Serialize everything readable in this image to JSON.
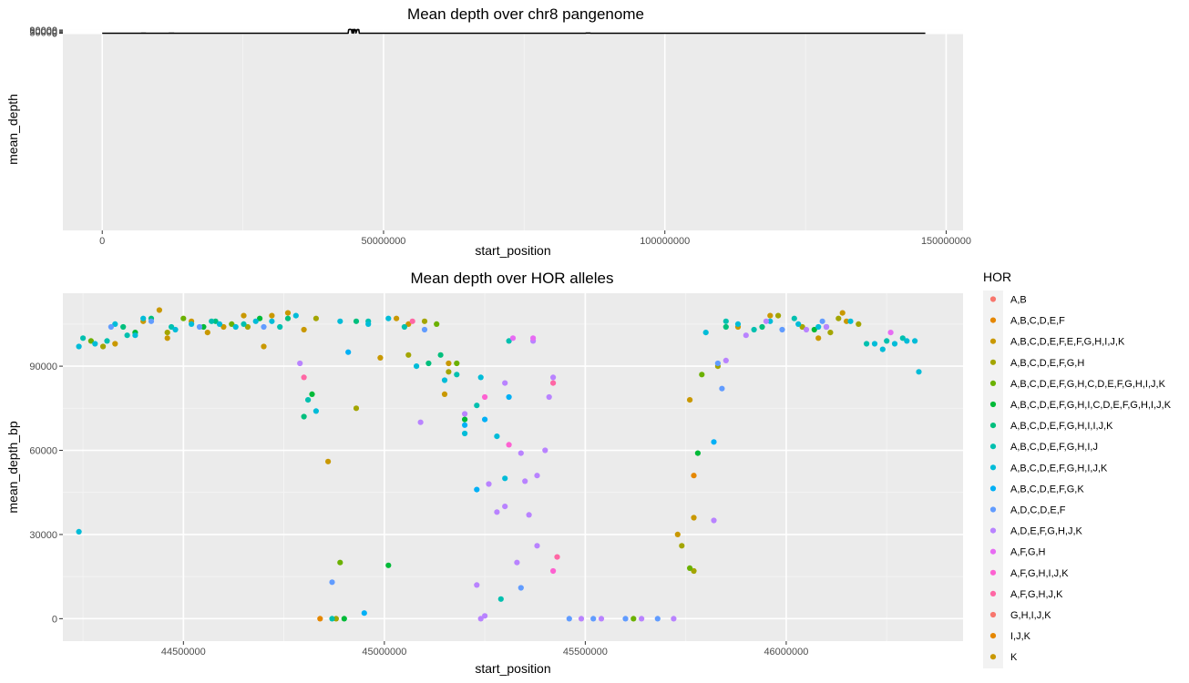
{
  "chart_data": [
    {
      "type": "line",
      "title": "Mean depth over chr8 pangenome",
      "xlabel": "start_position",
      "ylabel": "mean_depth",
      "xlim": [
        -7000000,
        153000000
      ],
      "ylim": [
        -5500000,
        115000
      ],
      "x_ticks": [
        0,
        50000000,
        100000000,
        150000000
      ],
      "x_tick_labels": [
        "0",
        "50000000",
        "100000000",
        "150000000"
      ],
      "y_ticks": [
        0,
        30000,
        60000,
        90000
      ],
      "y_tick_labels": [
        "0",
        "30000",
        "60000",
        "90000"
      ],
      "grid": true,
      "color": "#000000",
      "x": [
        0,
        6900000,
        7000000,
        7700000,
        7800000,
        11800000,
        11900000,
        12700000,
        12800000,
        43700000,
        43800000,
        44000000,
        44100000,
        44300000,
        44400000,
        44500000,
        44600000,
        44700000,
        44800000,
        45000000,
        45100000,
        45300000,
        45400000,
        45600000,
        45700000,
        57500000,
        57600000,
        57700000,
        85900000,
        86000000,
        86700000,
        86800000,
        144700000,
        144900000,
        146300000
      ],
      "y": [
        0,
        0,
        2500,
        2500,
        0,
        0,
        2500,
        2500,
        0,
        0,
        100000,
        110000,
        107000,
        100000,
        5000,
        105000,
        98000,
        4000,
        108000,
        100000,
        5000,
        102000,
        104000,
        100000,
        0,
        0,
        1000,
        0,
        0,
        5000,
        5000,
        0,
        0,
        1000,
        0
      ]
    },
    {
      "type": "scatter",
      "title": "Mean depth over HOR alleles",
      "xlabel": "start_position",
      "ylabel": "mean_depth_bp",
      "xlim": [
        44200000,
        46440000
      ],
      "ylim": [
        -8000,
        116000
      ],
      "x_ticks": [
        44500000,
        45000000,
        45500000,
        46000000
      ],
      "x_tick_labels": [
        "44500000",
        "45000000",
        "45500000",
        "46000000"
      ],
      "y_ticks": [
        0,
        30000,
        60000,
        90000
      ],
      "y_tick_labels": [
        "0",
        "30000",
        "60000",
        "90000"
      ],
      "grid": true,
      "legend": {
        "title": "HOR",
        "position": "right",
        "entries": [
          {
            "label": "A,B",
            "color": "#F8766D"
          },
          {
            "label": "A,B,C,D,E,F",
            "color": "#E58700"
          },
          {
            "label": "A,B,C,D,E,F,E,F,G,H,I,J,K",
            "color": "#C99800"
          },
          {
            "label": "A,B,C,D,E,F,G,H",
            "color": "#A3A500"
          },
          {
            "label": "A,B,C,D,E,F,G,H,C,D,E,F,G,H,I,J,K",
            "color": "#6BB100"
          },
          {
            "label": "A,B,C,D,E,F,G,H,I,C,D,E,F,G,H,I,J,K",
            "color": "#00BA38"
          },
          {
            "label": "A,B,C,D,E,F,G,H,I,I,J,K",
            "color": "#00BF7D"
          },
          {
            "label": "A,B,C,D,E,F,G,H,I,J",
            "color": "#00C0AF"
          },
          {
            "label": "A,B,C,D,E,F,G,H,I,J,K",
            "color": "#00BCD8"
          },
          {
            "label": "A,B,C,D,E,F,G,K",
            "color": "#00B0F6"
          },
          {
            "label": "A,D,C,D,E,F",
            "color": "#619CFF"
          },
          {
            "label": "A,D,E,F,G,H,J,K",
            "color": "#B983FF"
          },
          {
            "label": "A,F,G,H",
            "color": "#E76BF3"
          },
          {
            "label": "A,F,G,H,I,J,K",
            "color": "#FD61D1"
          },
          {
            "label": "A,F,G,H,J,K",
            "color": "#FF67A4"
          },
          {
            "label": "G,H,I,J,K",
            "color": "#F8766D"
          },
          {
            "label": "I,J,K",
            "color": "#E58700"
          },
          {
            "label": "K",
            "color": "#C99800"
          }
        ]
      },
      "series": [
        {
          "name": "A,B,C,D,E,F,E,F,G,H,I,J,K",
          "x": [
            44330000,
            44400000,
            44440000,
            44460000,
            44520000,
            44560000,
            44600000,
            44650000,
            44700000,
            44720000,
            44760000,
            44800000,
            44860000,
            44990000,
            45030000,
            45060000,
            45150000,
            45160000,
            45730000,
            45760000,
            45770000,
            45880000,
            45960000,
            46080000,
            46140000,
            46150000
          ],
          "y": [
            98000,
            106000,
            110000,
            100000,
            106000,
            102000,
            104000,
            108000,
            97000,
            108000,
            109000,
            103000,
            56000,
            93000,
            107000,
            105000,
            80000,
            91000,
            30000,
            78000,
            36000,
            104000,
            108000,
            100000,
            109000,
            106000
          ]
        },
        {
          "name": "A,B,C,D,E,F,G,H",
          "x": [
            44300000,
            44460000,
            44660000,
            44830000,
            44880000,
            44930000,
            45060000,
            45100000,
            45160000,
            45740000,
            45770000,
            45830000,
            45980000,
            46040000,
            46110000,
            46130000,
            46180000
          ],
          "y": [
            97000,
            102000,
            104000,
            107000,
            0,
            75000,
            94000,
            106000,
            88000,
            26000,
            17000,
            90000,
            108000,
            104000,
            102000,
            107000,
            105000
          ]
        },
        {
          "name": "A,B,C,D,E,F,G,H,C,D,E,F,G,H,I,J,K",
          "x": [
            44270000,
            44500000,
            44620000,
            44890000,
            45130000,
            45180000,
            45620000,
            45760000,
            45790000
          ],
          "y": [
            99000,
            107000,
            105000,
            20000,
            105000,
            91000,
            0,
            18000,
            87000
          ]
        },
        {
          "name": "A,B,C,D,E,F,G,H,I,C,D,E,F,G,H,I,J,K",
          "x": [
            44380000,
            44550000,
            44690000,
            44820000,
            44900000,
            45010000,
            45200000,
            45780000,
            46070000
          ],
          "y": [
            102000,
            104000,
            107000,
            80000,
            0,
            19000,
            71000,
            59000,
            103000
          ]
        },
        {
          "name": "A,B,C,D,E,F,G,H,I,I,J,K",
          "x": [
            44350000,
            44420000,
            44580000,
            44760000,
            44800000,
            44930000,
            45110000,
            45140000,
            45850000,
            45940000
          ],
          "y": [
            104000,
            107000,
            106000,
            107000,
            72000,
            106000,
            91000,
            94000,
            104000,
            104000
          ]
        },
        {
          "name": "A,B,C,D,E,F,G,H,I,J",
          "x": [
            44250000,
            44310000,
            44360000,
            44470000,
            44570000,
            44650000,
            44740000,
            44810000,
            44870000,
            44960000,
            45050000,
            45180000,
            45230000,
            45290000,
            45310000,
            45850000,
            45920000,
            46020000,
            46100000,
            46200000,
            46250000,
            46290000
          ],
          "y": [
            100000,
            99000,
            101000,
            104000,
            106000,
            105000,
            104000,
            78000,
            0,
            106000,
            104000,
            87000,
            76000,
            7000,
            99000,
            106000,
            103000,
            107000,
            104000,
            98000,
            99000,
            100000
          ]
        },
        {
          "name": "A,B,C,D,E,F,G,H,I,J,K",
          "x": [
            44240000,
            44240000,
            44280000,
            44330000,
            44380000,
            44400000,
            44480000,
            44520000,
            44590000,
            44630000,
            44680000,
            44720000,
            44780000,
            44830000,
            44890000,
            44960000,
            45010000,
            45080000,
            45150000,
            45200000,
            45240000,
            45280000,
            45300000,
            45800000,
            45880000,
            45960000,
            46030000,
            46080000,
            46160000,
            46220000,
            46240000,
            46270000,
            46300000,
            46320000,
            46330000
          ],
          "y": [
            97000,
            31000,
            98000,
            105000,
            101000,
            107000,
            103000,
            105000,
            105000,
            104000,
            106000,
            106000,
            108000,
            74000,
            106000,
            105000,
            107000,
            90000,
            85000,
            66000,
            86000,
            65000,
            50000,
            102000,
            105000,
            106000,
            105000,
            104000,
            106000,
            98000,
            96000,
            98000,
            99000,
            99000,
            88000
          ]
        },
        {
          "name": "A,B,C,D,E,F,G,K",
          "x": [
            44910000,
            44950000,
            45200000,
            45230000,
            45250000,
            45310000,
            45820000
          ],
          "y": [
            95000,
            2000,
            69000,
            46000,
            71000,
            79000,
            63000
          ]
        },
        {
          "name": "A,D,C,D,E,F",
          "x": [
            44320000,
            44420000,
            44540000,
            44700000,
            44870000,
            45100000,
            45340000,
            45460000,
            45520000,
            45600000,
            45680000,
            45830000,
            45840000,
            45990000,
            46090000
          ],
          "y": [
            104000,
            106000,
            104000,
            104000,
            13000,
            103000,
            11000,
            0,
            0,
            0,
            0,
            91000,
            82000,
            103000,
            106000
          ]
        },
        {
          "name": "A,D,E,F,G,H,J,K",
          "x": [
            44790000,
            45090000,
            45200000,
            45230000,
            45250000,
            45260000,
            45280000,
            45300000,
            45330000,
            45360000,
            45380000,
            45400000,
            45410000,
            45420000,
            45370000,
            45340000,
            45240000,
            45300000,
            45350000,
            45380000,
            45490000,
            45540000,
            45640000,
            45720000,
            45820000,
            45850000,
            45900000,
            45950000,
            46050000,
            46100000
          ],
          "y": [
            91000,
            70000,
            73000,
            12000,
            1000,
            48000,
            38000,
            40000,
            20000,
            37000,
            51000,
            60000,
            79000,
            86000,
            99000,
            59000,
            0,
            84000,
            49000,
            26000,
            0,
            0,
            0,
            0,
            35000,
            92000,
            101000,
            106000,
            103000,
            104000
          ]
        },
        {
          "name": "A,F,G,H",
          "x": [
            45320000,
            45370000,
            46260000
          ],
          "y": [
            100000,
            100000,
            102000
          ]
        },
        {
          "name": "A,F,G,H,I,J,K",
          "x": [
            45250000,
            45310000,
            45420000
          ],
          "y": [
            79000,
            62000,
            17000
          ]
        },
        {
          "name": "A,F,G,H,J,K",
          "x": [
            44800000,
            45070000,
            45420000,
            45430000
          ],
          "y": [
            86000,
            106000,
            84000,
            22000
          ]
        },
        {
          "name": "I,J,K",
          "x": [
            44840000,
            45770000
          ],
          "y": [
            0,
            51000
          ]
        }
      ]
    }
  ]
}
